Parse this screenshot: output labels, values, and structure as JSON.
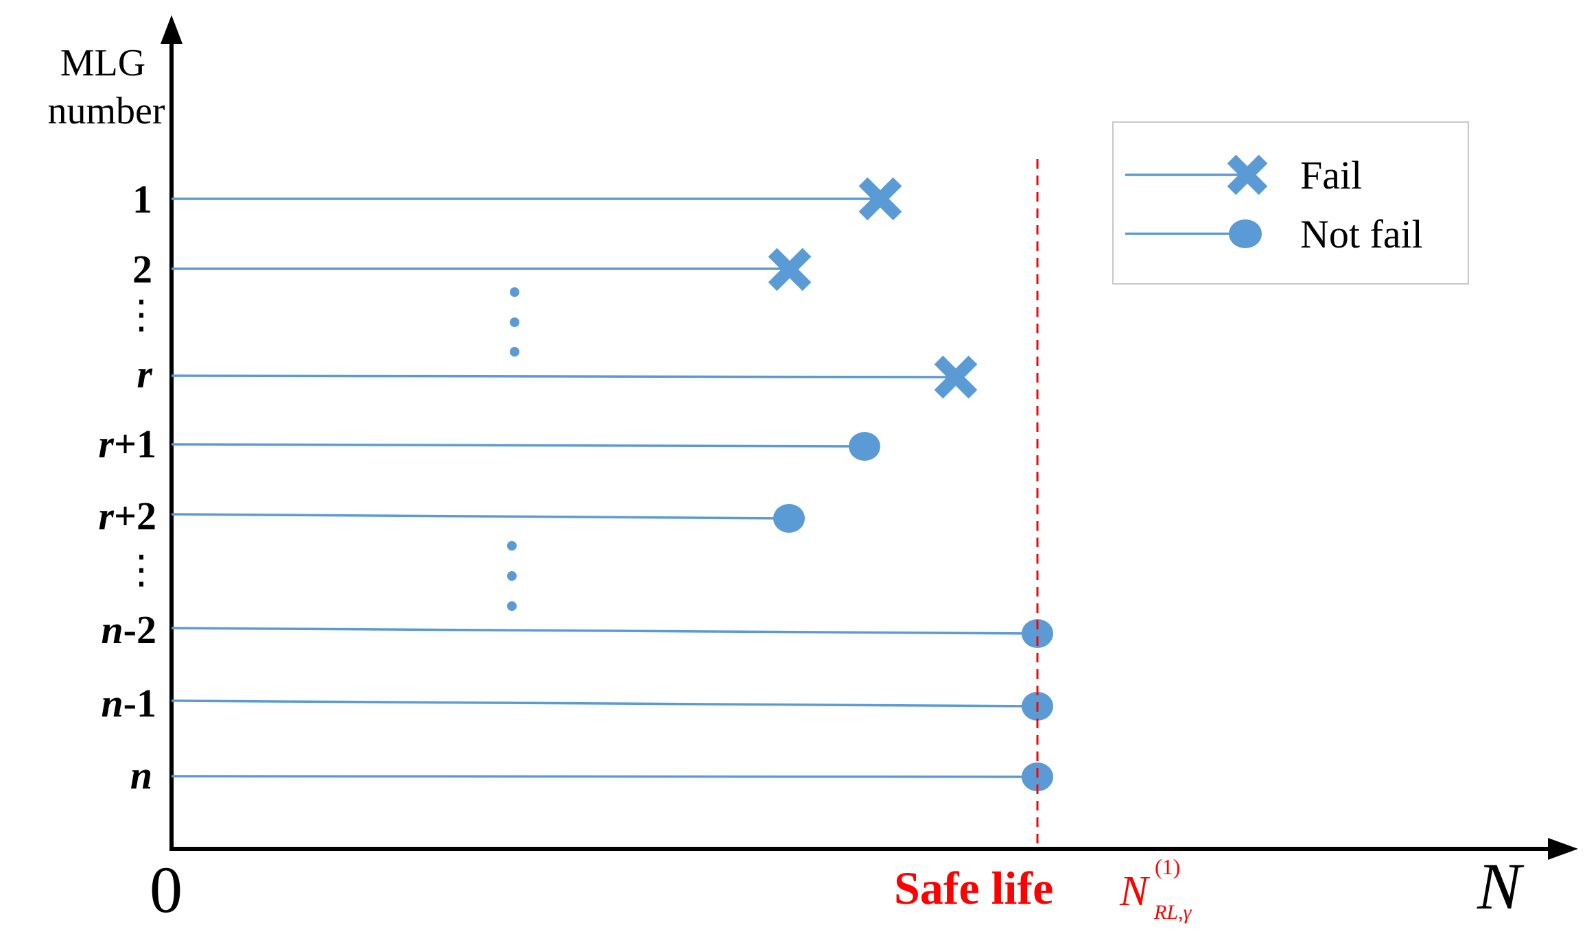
{
  "axis": {
    "y_title_line1": "MLG",
    "y_title_line2": "number",
    "origin_label": "0",
    "x_label": "N"
  },
  "rows": [
    {
      "label": "1",
      "italic": "",
      "status": "fail"
    },
    {
      "label": "2",
      "italic": "",
      "status": "fail"
    },
    {
      "label": "⋮",
      "italic": "",
      "status": "ellipsis"
    },
    {
      "label": "",
      "italic": "r",
      "status": "fail"
    },
    {
      "label": "+1",
      "italic": "r",
      "status": "not-fail"
    },
    {
      "label": "+2",
      "italic": "r",
      "status": "not-fail"
    },
    {
      "label": "⋮",
      "italic": "",
      "status": "ellipsis"
    },
    {
      "label": "-2",
      "italic": "n",
      "status": "not-fail"
    },
    {
      "label": "-1",
      "italic": "n",
      "status": "not-fail"
    },
    {
      "label": "",
      "italic": "n",
      "status": "not-fail"
    }
  ],
  "legend": {
    "fail_label": "Fail",
    "not_fail_label": "Not fail"
  },
  "safe_life": {
    "label": "Safe life",
    "symbol": "N",
    "superscript": "(1)",
    "subscript": "RL,γ",
    "color": "#ff0000"
  },
  "colors": {
    "series": "#5b9bd5",
    "axis": "#000000"
  }
}
